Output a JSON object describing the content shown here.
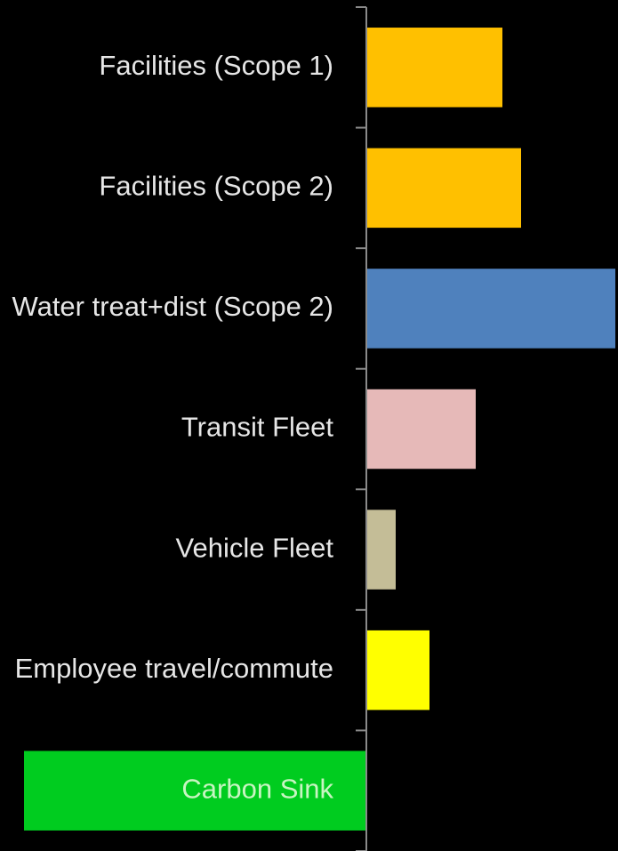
{
  "chart_data": {
    "type": "barh",
    "categories": [
      "Facilities (Scope 1)",
      "Facilities (Scope 2)",
      "Water treat+dist (Scope 2)",
      "Transit Fleet",
      "Vehicle Fleet",
      "Employee travel/commute",
      "Carbon Sink"
    ],
    "values": [
      153,
      174,
      280,
      123,
      33,
      71,
      -385
    ],
    "colors": [
      "#ffc000",
      "#ffc000",
      "#4f81bd",
      "#e6b9b8",
      "#c4bd97",
      "#ffff00",
      "#00cc1f"
    ],
    "xlim": [
      -412,
      283
    ]
  }
}
